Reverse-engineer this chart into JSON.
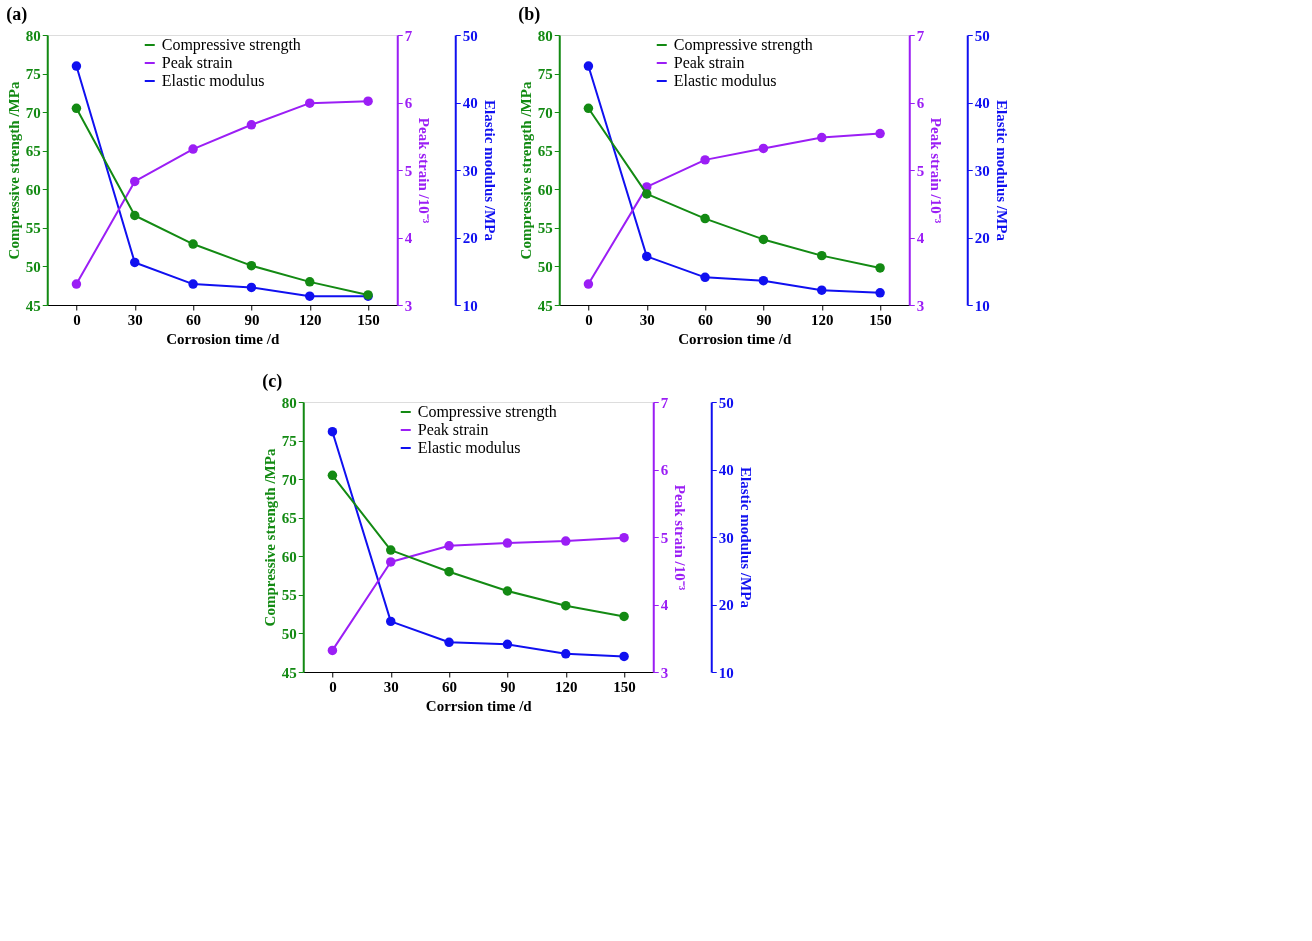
{
  "chart_data": [
    {
      "type": "line",
      "title": "(a)",
      "xlabel": "Corrosion time /d",
      "ylabel": "Compressive strength /MPa",
      "y2label": "Peak strain /10⁻³",
      "y3label": "Elastic modulus /MPa",
      "x": [
        0,
        30,
        60,
        90,
        120,
        150
      ],
      "xlim": [
        -15,
        165
      ],
      "xticks": [
        0,
        30,
        60,
        90,
        120,
        150
      ],
      "ylim": [
        45,
        80
      ],
      "yticks": [
        45,
        50,
        55,
        60,
        65,
        70,
        75,
        80
      ],
      "y2lim": [
        3,
        7
      ],
      "y2ticks": [
        3,
        4,
        5,
        6,
        7
      ],
      "y3lim": [
        10,
        50
      ],
      "y3ticks": [
        10,
        20,
        30,
        40,
        50
      ],
      "marker": "circle",
      "legend": "top",
      "series": [
        {
          "name": "Compressive strength",
          "color": "#138a13",
          "values": [
            70.5,
            56.6,
            52.9,
            50.1,
            48.0,
            46.3
          ]
        },
        {
          "name": "Peak strain",
          "color": "#9b1ef5",
          "axis": "y2",
          "values": [
            3.31,
            4.83,
            5.31,
            5.67,
            5.99,
            6.02
          ]
        },
        {
          "name": "Elastic modulus",
          "color": "#1010f0",
          "axis": "y3",
          "values": [
            45.4,
            16.3,
            13.1,
            12.6,
            11.3,
            11.3
          ]
        }
      ]
    },
    {
      "type": "line",
      "title": "(b)",
      "xlabel": "Corrosion time /d",
      "ylabel": "Compressive strength /MPa",
      "y2label": "Peak strain /10⁻³",
      "y3label": "Elastic modulus /MPa",
      "x": [
        0,
        30,
        60,
        90,
        120,
        150
      ],
      "xlim": [
        -15,
        165
      ],
      "xticks": [
        0,
        30,
        60,
        90,
        120,
        150
      ],
      "ylim": [
        45,
        80
      ],
      "yticks": [
        45,
        50,
        55,
        60,
        65,
        70,
        75,
        80
      ],
      "y2lim": [
        3,
        7
      ],
      "y2ticks": [
        3,
        4,
        5,
        6,
        7
      ],
      "y3lim": [
        10,
        50
      ],
      "y3ticks": [
        10,
        20,
        30,
        40,
        50
      ],
      "marker": "circle",
      "legend": "top",
      "series": [
        {
          "name": "Compressive strength",
          "color": "#138a13",
          "values": [
            70.5,
            59.4,
            56.2,
            53.5,
            51.4,
            49.8
          ]
        },
        {
          "name": "Peak strain",
          "color": "#9b1ef5",
          "axis": "y2",
          "values": [
            3.31,
            4.75,
            5.15,
            5.32,
            5.48,
            5.54
          ]
        },
        {
          "name": "Elastic modulus",
          "color": "#1010f0",
          "axis": "y3",
          "values": [
            45.4,
            17.2,
            14.1,
            13.6,
            12.2,
            11.8
          ]
        }
      ]
    },
    {
      "type": "line",
      "title": "(c)",
      "xlabel": "Corrsion time /d",
      "ylabel": "Compressive strength /MPa",
      "y2label": "Peak strain /10⁻³",
      "y3label": "Elastic modulus /MPa",
      "x": [
        0,
        30,
        60,
        90,
        120,
        150
      ],
      "xlim": [
        -15,
        165
      ],
      "xticks": [
        0,
        30,
        60,
        90,
        120,
        150
      ],
      "ylim": [
        45,
        80
      ],
      "yticks": [
        45,
        50,
        55,
        60,
        65,
        70,
        75,
        80
      ],
      "y2lim": [
        3,
        7
      ],
      "y2ticks": [
        3,
        4,
        5,
        6,
        7
      ],
      "y3lim": [
        10,
        50
      ],
      "y3ticks": [
        10,
        20,
        30,
        40,
        50
      ],
      "marker": "circle",
      "legend": "top",
      "series": [
        {
          "name": "Compressive strength",
          "color": "#138a13",
          "values": [
            70.5,
            60.8,
            58.0,
            55.5,
            53.6,
            52.2
          ]
        },
        {
          "name": "Peak strain",
          "color": "#9b1ef5",
          "axis": "y2",
          "values": [
            3.32,
            4.63,
            4.87,
            4.91,
            4.94,
            4.99
          ]
        },
        {
          "name": "Elastic modulus",
          "color": "#1010f0",
          "axis": "y3",
          "values": [
            45.6,
            17.5,
            14.4,
            14.1,
            12.7,
            12.3
          ]
        }
      ]
    }
  ]
}
